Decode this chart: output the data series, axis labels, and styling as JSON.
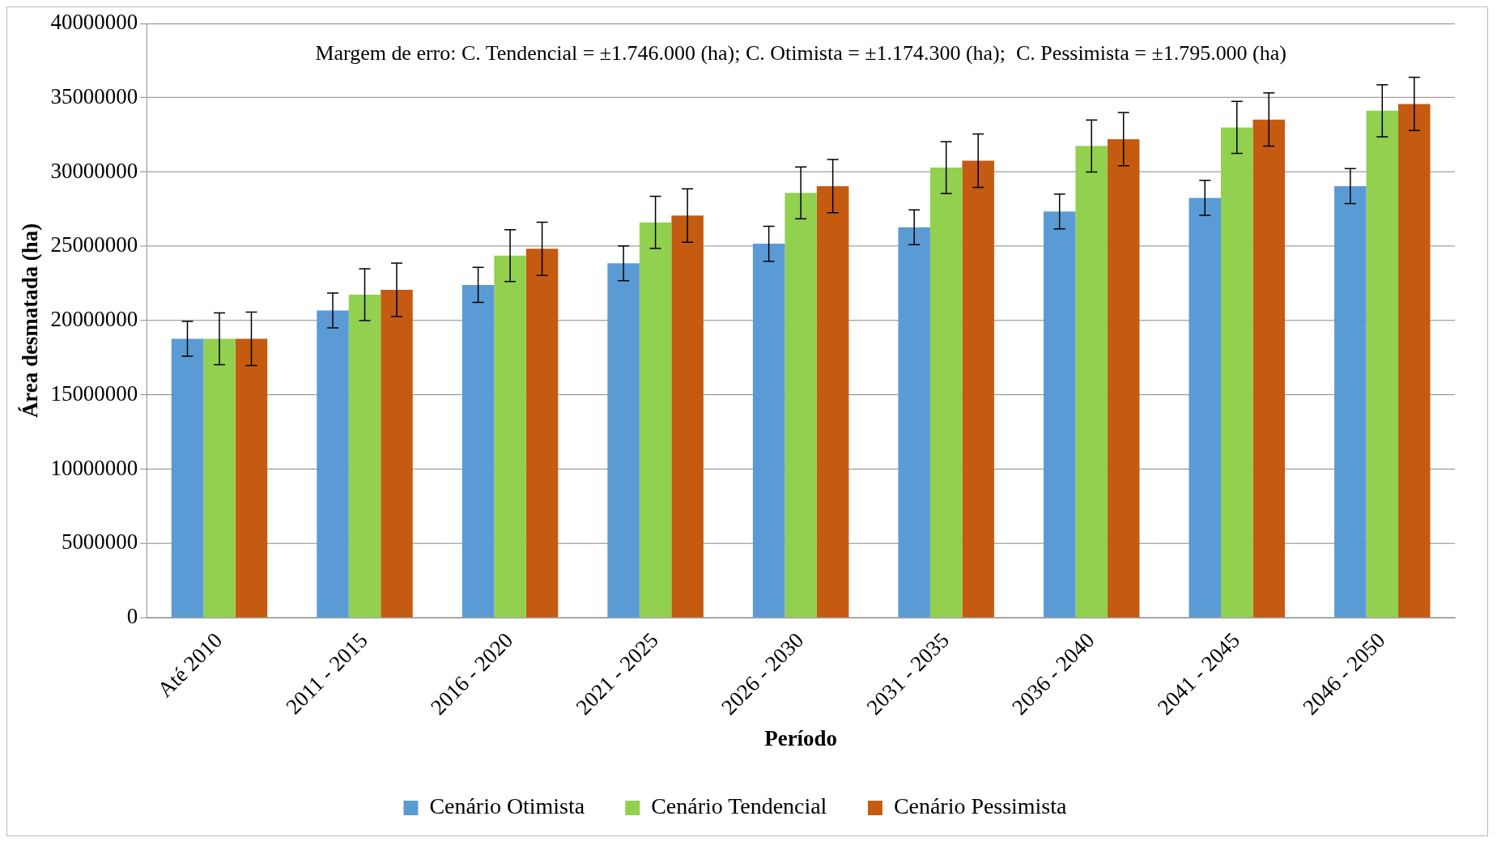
{
  "chart_data": {
    "type": "bar",
    "xlabel": "Período",
    "ylabel": "Área desmatada (ha)",
    "annotations": [
      "Margem de erro: C. Tendencial = ±1.746.000 (ha); C. Otimista = ±1.174.300 (ha);  C. Pessimista = ±1.795.000 (ha)"
    ],
    "categories": [
      "Até 2010",
      "2011 - 2015",
      "2016 - 2020",
      "2021 - 2025",
      "2026 - 2030",
      "2031 - 2035",
      "2036 - 2040",
      "2041 - 2045",
      "2046 - 2050"
    ],
    "series": [
      {
        "name": "Cenário Otimista",
        "color": "#5b9bd5",
        "values": [
          18770000,
          20680000,
          22400000,
          23850000,
          25170000,
          26280000,
          27340000,
          28260000,
          29050000
        ],
        "errors": [
          1174300,
          1174300,
          1174300,
          1174300,
          1174300,
          1174300,
          1174300,
          1174300,
          1174300
        ]
      },
      {
        "name": "Cenário Tendencial",
        "color": "#92d050",
        "values": [
          18770000,
          21740000,
          24370000,
          26610000,
          28590000,
          30300000,
          31750000,
          33000000,
          34120000
        ],
        "errors": [
          1746000,
          1746000,
          1746000,
          1746000,
          1746000,
          1746000,
          1746000,
          1746000,
          1746000
        ]
      },
      {
        "name": "Cenário Pessimista",
        "color": "#c55a11",
        "values": [
          18770000,
          22070000,
          24830000,
          27070000,
          29050000,
          30760000,
          32210000,
          33530000,
          34580000
        ],
        "errors": [
          1795000,
          1795000,
          1795000,
          1795000,
          1795000,
          1795000,
          1795000,
          1795000,
          1795000
        ]
      }
    ],
    "ylim": [
      0,
      40000000
    ],
    "yticks": [
      0,
      5000000,
      10000000,
      15000000,
      20000000,
      25000000,
      30000000,
      35000000,
      40000000
    ],
    "grid": "y",
    "legend": "bottom"
  }
}
